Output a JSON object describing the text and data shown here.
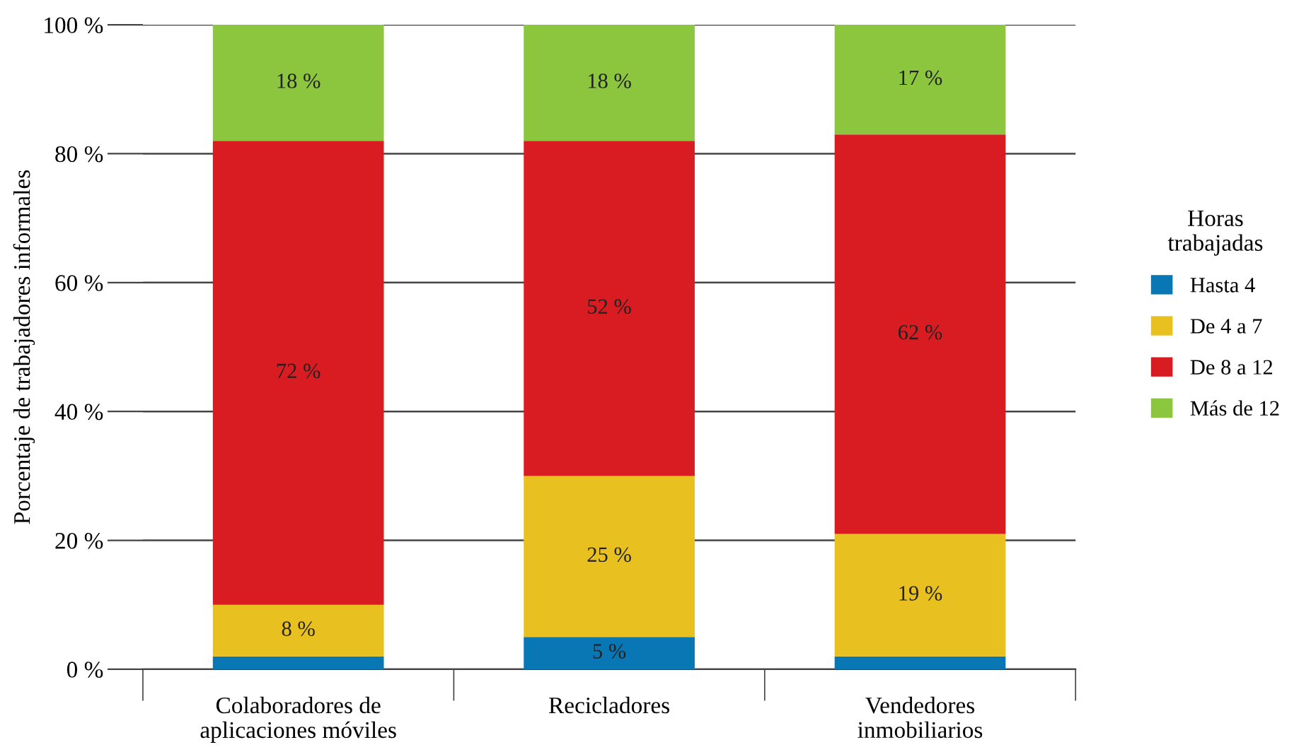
{
  "chart_data": {
    "type": "bar",
    "stacked": true,
    "ylabel": "Porcentaje de trabajadores informales",
    "legend_title": "Horas\ntrabajadas",
    "legend": "right",
    "grid": "y",
    "categories": [
      "Colaboradores de\naplicaciones móviles",
      "Recicladores",
      "Vendedores\ninmobiliarios"
    ],
    "ylim": [
      0,
      100
    ],
    "yticks": [
      {
        "value": 0,
        "label": "0 %"
      },
      {
        "value": 20,
        "label": "20 %"
      },
      {
        "value": 40,
        "label": "40 %"
      },
      {
        "value": 60,
        "label": "60 %"
      },
      {
        "value": 80,
        "label": "80 %"
      },
      {
        "value": 100,
        "label": "100 %"
      }
    ],
    "series": [
      {
        "name": "Hasta 4",
        "color": "#0a77b5",
        "values": [
          2,
          5,
          2
        ],
        "value_labels": [
          null,
          "5 %",
          null
        ]
      },
      {
        "name": "De 4 a 7",
        "color": "#e8c120",
        "values": [
          8,
          25,
          19
        ],
        "value_labels": [
          "8 %",
          "25 %",
          "19 %"
        ]
      },
      {
        "name": "De 8 a 12",
        "color": "#d91c22",
        "values": [
          72,
          52,
          62
        ],
        "value_labels": [
          "72 %",
          "52 %",
          "62 %"
        ]
      },
      {
        "name": "Más de 12",
        "color": "#8cc63f",
        "values": [
          18,
          18,
          17
        ],
        "value_labels": [
          "18 %",
          "18 %",
          "17 %"
        ]
      }
    ]
  }
}
